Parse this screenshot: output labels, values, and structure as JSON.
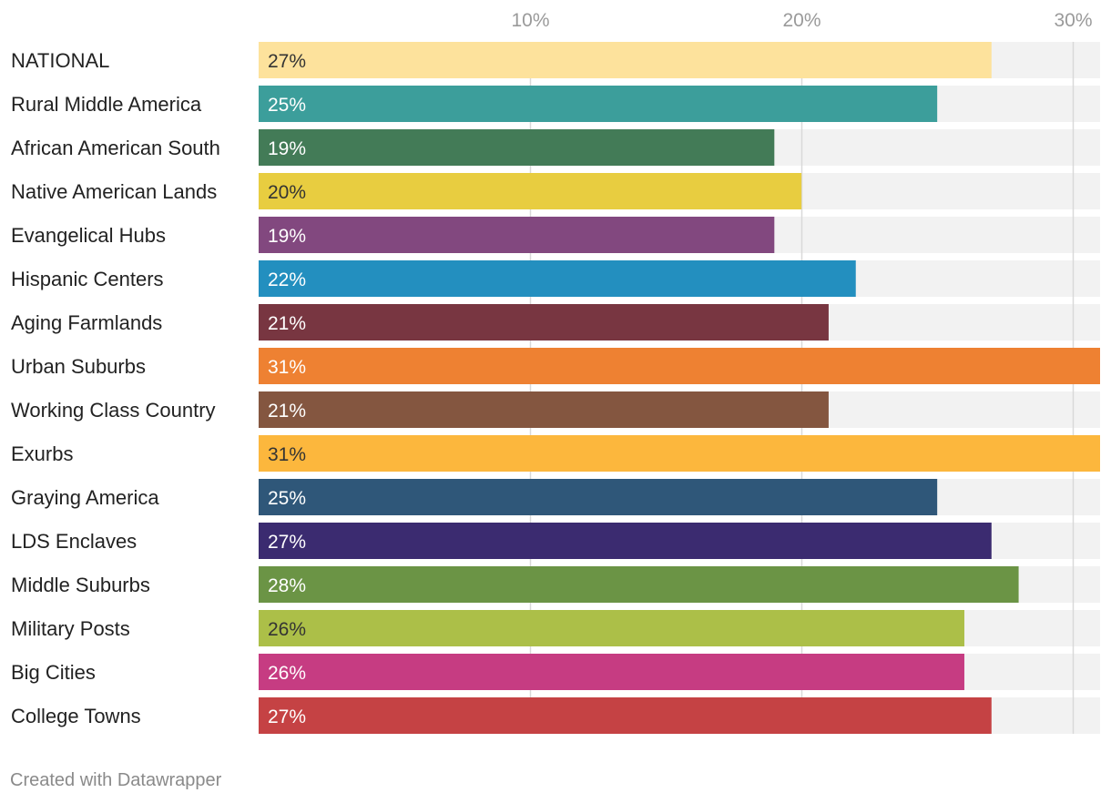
{
  "chart_data": {
    "type": "bar",
    "orientation": "horizontal",
    "xlim": [
      0,
      31
    ],
    "ticks": [
      10,
      20,
      30
    ],
    "tick_labels": [
      "10%",
      "20%",
      "30%"
    ],
    "categories": [
      "NATIONAL",
      "Rural Middle America",
      "African American South",
      "Native American Lands",
      "Evangelical Hubs",
      "Hispanic Centers",
      "Aging Farmlands",
      "Urban Suburbs",
      "Working Class Country",
      "Exurbs",
      "Graying America",
      "LDS Enclaves",
      "Middle Suburbs",
      "Military Posts",
      "Big Cities",
      "College Towns"
    ],
    "values": [
      27,
      25,
      19,
      20,
      19,
      22,
      21,
      31,
      21,
      31,
      25,
      27,
      28,
      26,
      26,
      27
    ],
    "value_labels": [
      "27%",
      "25%",
      "19%",
      "20%",
      "19%",
      "22%",
      "21%",
      "31%",
      "21%",
      "31%",
      "25%",
      "27%",
      "28%",
      "26%",
      "26%",
      "27%"
    ],
    "colors": [
      "#fde29c",
      "#3c9e9b",
      "#437b57",
      "#e8cd40",
      "#82487f",
      "#238fbf",
      "#783641",
      "#ee8132",
      "#845640",
      "#fcb73d",
      "#2f5779",
      "#3b2b70",
      "#6b9445",
      "#acbf48",
      "#c63c82",
      "#c54244"
    ],
    "label_colors": [
      "#333333",
      "#ffffff",
      "#ffffff",
      "#333333",
      "#ffffff",
      "#ffffff",
      "#ffffff",
      "#ffffff",
      "#ffffff",
      "#333333",
      "#ffffff",
      "#ffffff",
      "#ffffff",
      "#333333",
      "#ffffff",
      "#ffffff"
    ],
    "background_bar_color": "#f2f2f2",
    "grid": true
  },
  "footer": {
    "credit": "Created with Datawrapper"
  }
}
